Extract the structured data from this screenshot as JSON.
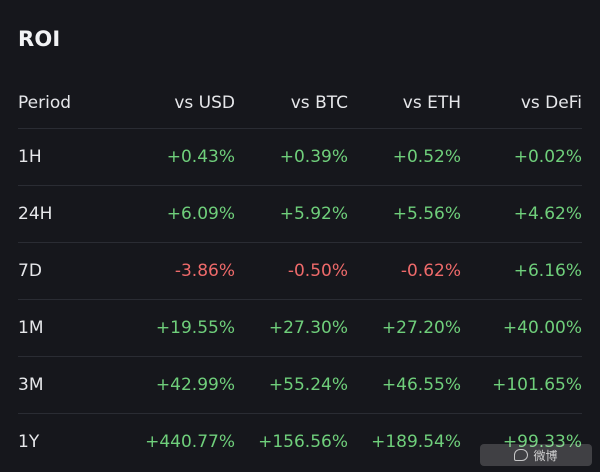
{
  "title": "ROI",
  "columns": [
    "Period",
    "vs USD",
    "vs BTC",
    "vs ETH",
    "vs DeFi"
  ],
  "rows": [
    {
      "period": "1H",
      "usd": "+0.43%",
      "btc": "+0.39%",
      "eth": "+0.52%",
      "defi": "+0.02%"
    },
    {
      "period": "24H",
      "usd": "+6.09%",
      "btc": "+5.92%",
      "eth": "+5.56%",
      "defi": "+4.62%"
    },
    {
      "period": "7D",
      "usd": "-3.86%",
      "btc": "-0.50%",
      "eth": "-0.62%",
      "defi": "+6.16%"
    },
    {
      "period": "1M",
      "usd": "+19.55%",
      "btc": "+27.30%",
      "eth": "+27.20%",
      "defi": "+40.00%"
    },
    {
      "period": "3M",
      "usd": "+42.99%",
      "btc": "+55.24%",
      "eth": "+46.55%",
      "defi": "+101.65%"
    },
    {
      "period": "1Y",
      "usd": "+440.77%",
      "btc": "+156.56%",
      "eth": "+189.54%",
      "defi": "+99.33%"
    }
  ],
  "colors": {
    "background": "#16171c",
    "positive": "#6fcf7b",
    "negative": "#ee6a6a",
    "divider": "#2a2c33"
  },
  "watermark": {
    "text": "微博",
    "icon": "speech-bubble-icon"
  }
}
